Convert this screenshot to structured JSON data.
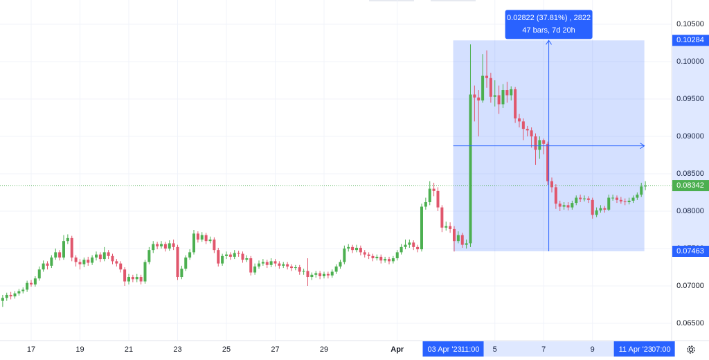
{
  "chart_data": {
    "type": "candlestick",
    "open": [
      0.068,
      0.0684,
      0.0688,
      0.0686,
      0.069,
      0.0693,
      0.0695,
      0.0704,
      0.0702,
      0.071,
      0.0722,
      0.073,
      0.0727,
      0.0738,
      0.0745,
      0.0738,
      0.076,
      0.0764,
      0.0738,
      0.0732,
      0.0729,
      0.0735,
      0.0731,
      0.0738,
      0.0742,
      0.0736,
      0.0745,
      0.074,
      0.0733,
      0.073,
      0.0722,
      0.0706,
      0.0712,
      0.0709,
      0.0712,
      0.0706,
      0.0732,
      0.0748,
      0.0756,
      0.0753,
      0.0756,
      0.075,
      0.0757,
      0.0752,
      0.0712,
      0.0723,
      0.0738,
      0.0745,
      0.077,
      0.0762,
      0.0768,
      0.076,
      0.0762,
      0.0748,
      0.073,
      0.074,
      0.0742,
      0.0739,
      0.0744,
      0.0743,
      0.0735,
      0.0737,
      0.0718,
      0.0726,
      0.073,
      0.0732,
      0.0728,
      0.0733,
      0.073,
      0.0727,
      0.0729,
      0.0726,
      0.0724,
      0.0725,
      0.0719,
      0.072,
      0.0712,
      0.0715,
      0.0717,
      0.0713,
      0.0716,
      0.0714,
      0.0719,
      0.0726,
      0.0732,
      0.075,
      0.0752,
      0.0748,
      0.0751,
      0.0745,
      0.0742,
      0.074,
      0.0737,
      0.0739,
      0.0734,
      0.0736,
      0.0733,
      0.0737,
      0.0745,
      0.0752,
      0.0755,
      0.0758,
      0.0752,
      0.0749,
      0.0806,
      0.0812,
      0.083,
      0.0827,
      0.0805,
      0.0778,
      0.078,
      0.0776,
      0.076,
      0.0768,
      0.0755,
      0.0757,
      0.0956,
      0.0952,
      0.0948,
      0.0981,
      0.0978,
      0.0953,
      0.0955,
      0.0943,
      0.0962,
      0.0955,
      0.0963,
      0.0924,
      0.092,
      0.091,
      0.0908,
      0.09,
      0.0882,
      0.0895,
      0.089,
      0.084,
      0.0832,
      0.081,
      0.0806,
      0.0808,
      0.0805,
      0.0811,
      0.0818,
      0.0816,
      0.0817,
      0.0815,
      0.0795,
      0.0801,
      0.0804,
      0.0802,
      0.0818,
      0.0818,
      0.0815,
      0.0813,
      0.0812,
      0.0814,
      0.0818,
      0.0822,
      0.0833
    ],
    "high": [
      0.0688,
      0.0691,
      0.0692,
      0.0693,
      0.0696,
      0.0698,
      0.0707,
      0.0708,
      0.0713,
      0.0726,
      0.0734,
      0.0733,
      0.0741,
      0.075,
      0.0748,
      0.0768,
      0.0769,
      0.0767,
      0.0741,
      0.0736,
      0.0738,
      0.0739,
      0.0741,
      0.0746,
      0.0745,
      0.0752,
      0.0748,
      0.0743,
      0.0736,
      0.0733,
      0.0725,
      0.0716,
      0.0715,
      0.0716,
      0.0715,
      0.0735,
      0.0752,
      0.076,
      0.0759,
      0.076,
      0.0759,
      0.0761,
      0.0762,
      0.0755,
      0.0727,
      0.0741,
      0.0749,
      0.0775,
      0.0773,
      0.0772,
      0.0771,
      0.0766,
      0.0765,
      0.0751,
      0.0743,
      0.0746,
      0.0745,
      0.0748,
      0.0747,
      0.0746,
      0.0741,
      0.074,
      0.073,
      0.0734,
      0.0736,
      0.0735,
      0.0737,
      0.0736,
      0.0733,
      0.0732,
      0.0732,
      0.0729,
      0.0728,
      0.0728,
      0.0723,
      0.0737,
      0.0718,
      0.072,
      0.072,
      0.0719,
      0.0719,
      0.0722,
      0.0729,
      0.0735,
      0.0754,
      0.0756,
      0.0755,
      0.0755,
      0.0754,
      0.0748,
      0.0745,
      0.0743,
      0.0742,
      0.0742,
      0.0739,
      0.0739,
      0.074,
      0.0748,
      0.0756,
      0.0762,
      0.0762,
      0.0761,
      0.0755,
      0.081,
      0.0818,
      0.084,
      0.0838,
      0.0832,
      0.0808,
      0.0786,
      0.0785,
      0.078,
      0.0773,
      0.0771,
      0.0762,
      0.1023,
      0.0968,
      0.0962,
      0.101,
      0.1015,
      0.0985,
      0.0975,
      0.0968,
      0.097,
      0.0973,
      0.0967,
      0.0966,
      0.093,
      0.0924,
      0.0914,
      0.0912,
      0.0904,
      0.09,
      0.0897,
      0.0893,
      0.0845,
      0.0836,
      0.0814,
      0.0812,
      0.0812,
      0.0814,
      0.0821,
      0.0822,
      0.0821,
      0.082,
      0.0818,
      0.0805,
      0.0808,
      0.0807,
      0.0822,
      0.0822,
      0.0821,
      0.0819,
      0.0817,
      0.0818,
      0.0821,
      0.0825,
      0.0838,
      0.084
    ],
    "low": [
      0.0672,
      0.068,
      0.0682,
      0.0683,
      0.0687,
      0.069,
      0.0692,
      0.0699,
      0.0699,
      0.0707,
      0.0719,
      0.0722,
      0.0724,
      0.0735,
      0.0734,
      0.0735,
      0.0756,
      0.0733,
      0.0726,
      0.0722,
      0.0725,
      0.0727,
      0.0728,
      0.0734,
      0.0732,
      0.0733,
      0.0736,
      0.0729,
      0.0726,
      0.0718,
      0.07,
      0.0702,
      0.0705,
      0.0705,
      0.0702,
      0.0703,
      0.0729,
      0.0744,
      0.0749,
      0.075,
      0.0746,
      0.0747,
      0.0748,
      0.0708,
      0.0709,
      0.072,
      0.0735,
      0.0742,
      0.0758,
      0.0759,
      0.0756,
      0.0757,
      0.0744,
      0.0726,
      0.0727,
      0.0736,
      0.0735,
      0.0736,
      0.0739,
      0.0731,
      0.0732,
      0.0714,
      0.0715,
      0.0723,
      0.0727,
      0.0724,
      0.0725,
      0.0726,
      0.0723,
      0.0724,
      0.0722,
      0.072,
      0.0721,
      0.0715,
      0.0715,
      0.07,
      0.0708,
      0.0711,
      0.0709,
      0.071,
      0.071,
      0.0711,
      0.0716,
      0.0723,
      0.0729,
      0.0746,
      0.0744,
      0.0745,
      0.0741,
      0.0738,
      0.0736,
      0.0733,
      0.0734,
      0.073,
      0.0731,
      0.0729,
      0.073,
      0.0734,
      0.0742,
      0.0749,
      0.0751,
      0.0748,
      0.0745,
      0.0746,
      0.0802,
      0.0808,
      0.082,
      0.08,
      0.0772,
      0.0774,
      0.0771,
      0.0746,
      0.0757,
      0.0751,
      0.075,
      0.0752,
      0.092,
      0.09,
      0.0945,
      0.0965,
      0.0945,
      0.094,
      0.093,
      0.0938,
      0.0945,
      0.0948,
      0.0918,
      0.0912,
      0.0895,
      0.09,
      0.0885,
      0.0862,
      0.087,
      0.0876,
      0.0835,
      0.0825,
      0.0803,
      0.08,
      0.0802,
      0.0801,
      0.0802,
      0.0808,
      0.0812,
      0.0813,
      0.0811,
      0.079,
      0.0792,
      0.0798,
      0.0798,
      0.08,
      0.0814,
      0.0811,
      0.081,
      0.0808,
      0.0809,
      0.0811,
      0.0815,
      0.0819,
      0.0828
    ],
    "close": [
      0.0684,
      0.0688,
      0.0686,
      0.069,
      0.0693,
      0.0695,
      0.0704,
      0.0702,
      0.071,
      0.0722,
      0.073,
      0.0727,
      0.0738,
      0.0745,
      0.0738,
      0.076,
      0.0764,
      0.0738,
      0.0732,
      0.0729,
      0.0735,
      0.0731,
      0.0738,
      0.0742,
      0.0736,
      0.0745,
      0.074,
      0.0733,
      0.073,
      0.0722,
      0.0706,
      0.0712,
      0.0709,
      0.0712,
      0.0706,
      0.0732,
      0.0748,
      0.0756,
      0.0753,
      0.0756,
      0.075,
      0.0757,
      0.0752,
      0.0712,
      0.0723,
      0.0738,
      0.0745,
      0.077,
      0.0762,
      0.0768,
      0.076,
      0.0762,
      0.0748,
      0.073,
      0.074,
      0.0742,
      0.0739,
      0.0744,
      0.0743,
      0.0735,
      0.0737,
      0.0718,
      0.0726,
      0.073,
      0.0732,
      0.0728,
      0.0733,
      0.073,
      0.0727,
      0.0729,
      0.0726,
      0.0724,
      0.0725,
      0.0719,
      0.072,
      0.0712,
      0.0715,
      0.0717,
      0.0713,
      0.0716,
      0.0714,
      0.0719,
      0.0726,
      0.0732,
      0.075,
      0.0752,
      0.0748,
      0.0751,
      0.0745,
      0.0742,
      0.074,
      0.0737,
      0.0739,
      0.0734,
      0.0736,
      0.0733,
      0.0737,
      0.0745,
      0.0752,
      0.0755,
      0.0758,
      0.0752,
      0.0749,
      0.0806,
      0.0812,
      0.083,
      0.0827,
      0.0805,
      0.0778,
      0.078,
      0.0776,
      0.076,
      0.0768,
      0.0755,
      0.0757,
      0.0956,
      0.0952,
      0.0948,
      0.0981,
      0.0978,
      0.0953,
      0.0955,
      0.0943,
      0.0962,
      0.0955,
      0.0963,
      0.0924,
      0.092,
      0.091,
      0.0908,
      0.09,
      0.0882,
      0.0895,
      0.089,
      0.084,
      0.0832,
      0.081,
      0.0806,
      0.0808,
      0.0805,
      0.0811,
      0.0818,
      0.0816,
      0.0817,
      0.0815,
      0.0795,
      0.0801,
      0.0804,
      0.0802,
      0.0818,
      0.0818,
      0.0815,
      0.0813,
      0.0812,
      0.0814,
      0.0818,
      0.0822,
      0.0833,
      0.0834
    ],
    "up_color": "#4caf50",
    "down_color": "#e0566c",
    "xlim": [
      -0.66,
      164.45
    ],
    "xticks": [
      {
        "value": 7,
        "label": "17"
      },
      {
        "value": 19,
        "label": "19"
      },
      {
        "value": 31,
        "label": "21"
      },
      {
        "value": 43,
        "label": "23"
      },
      {
        "value": 55,
        "label": "25"
      },
      {
        "value": 67,
        "label": "27"
      },
      {
        "value": 79,
        "label": "29"
      },
      {
        "value": 97,
        "label": "Apr"
      },
      {
        "value": 121,
        "label": "5"
      },
      {
        "value": 133,
        "label": "7"
      },
      {
        "value": 145,
        "label": "9"
      }
    ],
    "ylim": [
      0.06287,
      0.10824
    ],
    "yticks": [
      {
        "value": 0.065,
        "label": "0.06500"
      },
      {
        "value": 0.07,
        "label": "0.07000"
      },
      {
        "value": 0.075,
        "label": "0.07500"
      },
      {
        "value": 0.08,
        "label": "0.08000"
      },
      {
        "value": 0.085,
        "label": "0.08500"
      },
      {
        "value": 0.09,
        "label": "0.09000"
      },
      {
        "value": 0.095,
        "label": "0.09500"
      },
      {
        "value": 0.1,
        "label": "0.10000"
      },
      {
        "value": 0.105,
        "label": "0.10500"
      }
    ],
    "grid": true,
    "last_price": 0.08342,
    "last_price_color": "#4caf50",
    "measure": {
      "x": [
        110.75,
        157.75
      ],
      "low": 0.07463,
      "high": 0.10284,
      "line1": "0.02822 (37.81%) , 2822",
      "line2": "47 bars, 7d 20h",
      "start_date": "03 Apr '23",
      "start_time": "11:00",
      "end_date": "11 Apr '23",
      "end_time": "07:00",
      "color": "#2962ff"
    }
  }
}
